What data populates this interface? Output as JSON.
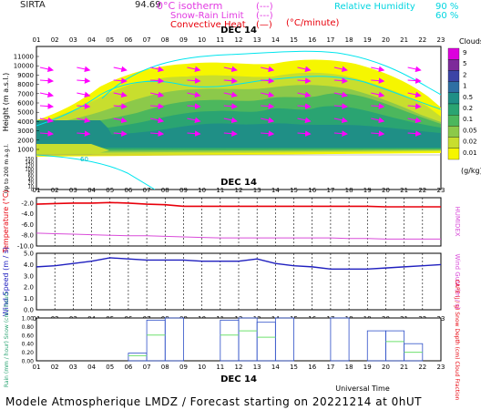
{
  "header": {
    "site": "SIRTA",
    "coord": "94.69",
    "legend_iso": "0°C isotherm",
    "legend_iso_sym": "(---)",
    "legend_snow": "Snow-Rain Limit",
    "legend_snow_sym": "(---)",
    "legend_conv": "Convective Heat.",
    "legend_conv_sym": "(—)",
    "legend_conv_unit": "(°C/minute)",
    "legend_rh": "Relative Humidity",
    "legend_rh_90": "90 %",
    "legend_rh_60": "60 %"
  },
  "hours": [
    "01",
    "02",
    "03",
    "04",
    "05",
    "06",
    "07",
    "08",
    "09",
    "10",
    "11",
    "12",
    "13",
    "14",
    "15",
    "16",
    "17",
    "18",
    "19",
    "20",
    "21",
    "22",
    "23"
  ],
  "date_label": "DEC 14",
  "footer": {
    "title": "Modele Atmospherique LMDZ / Forecast starting on 20221214 at 0hUT",
    "xlabel": "Universal Time"
  },
  "colors": {
    "wind_arrow": "#ff00ff",
    "rh_line": "#00e5ee",
    "temperature": "#e8000b",
    "humidex": "#d94cd9",
    "wind": "#1f1fbf",
    "rain": "#6ee06e",
    "snow_depth": "#2d4fc8"
  },
  "chart_data": [
    {
      "type": "heatmap",
      "name": "clouds",
      "ylabel": "Height (m a.s.l.)",
      "ylabel2": "Up to 200 m a.g.l.",
      "upper_ticks": [
        "11000",
        "10000",
        "9000",
        "8000",
        "7000",
        "6000",
        "5000",
        "4000",
        "3000",
        "2000",
        "1000"
      ],
      "lower_ticks": [
        "150",
        "140",
        "120",
        "100",
        "80",
        "60",
        "40",
        "20",
        "10",
        "0"
      ],
      "colorbar_title": "Clouds",
      "colorbar_ticks": [
        "9",
        "5",
        "2",
        "1",
        "0.5",
        "0.2",
        "0.1",
        "0.05",
        "0.02",
        "0.01"
      ],
      "colorbar_unit": "(g/kg)",
      "colorbar_colors": [
        "#dd00dd",
        "#7d2b9a",
        "#3c44a6",
        "#2e6fa3",
        "#1f8f86",
        "#2aa472",
        "#4cb75d",
        "#8cc94a",
        "#c8de2e",
        "#f6f600"
      ],
      "rh_label": "60"
    },
    {
      "type": "line",
      "name": "temperature",
      "ylabel": "Temperature (°C)",
      "ylabel2": "HUMIDEX",
      "yticks": [
        "-2.0",
        "-4.0",
        "-6.0",
        "-8.0",
        "-10.0"
      ],
      "ylim": [
        -10,
        -1
      ],
      "series": [
        {
          "name": "Temperature",
          "values": [
            -2.2,
            -2.1,
            -2.0,
            -2.0,
            -1.9,
            -2.0,
            -2.2,
            -2.3,
            -2.6,
            -2.6,
            -2.6,
            -2.6,
            -2.6,
            -2.6,
            -2.6,
            -2.6,
            -2.6,
            -2.6,
            -2.6,
            -2.7,
            -2.7,
            -2.7,
            -2.7
          ]
        },
        {
          "name": "HUMIDEX",
          "values": [
            -7.6,
            -7.7,
            -7.8,
            -7.9,
            -8.0,
            -8.1,
            -8.1,
            -8.2,
            -8.3,
            -8.4,
            -8.5,
            -8.5,
            -8.5,
            -8.5,
            -8.5,
            -8.5,
            -8.5,
            -8.6,
            -8.6,
            -8.7,
            -8.7,
            -8.7,
            -8.7
          ]
        }
      ]
    },
    {
      "type": "line",
      "name": "wind",
      "ylabel": "Wind Speed (m / s)",
      "ylabel2": "Wind Gust (m / s)",
      "yticks": [
        "5.0",
        "4.0",
        "3.0",
        "2.0",
        "1.0",
        "0.0"
      ],
      "ylim": [
        0,
        5
      ],
      "series": [
        {
          "name": "Wind Speed",
          "values": [
            3.8,
            3.9,
            4.1,
            4.3,
            4.6,
            4.5,
            4.4,
            4.4,
            4.4,
            4.3,
            4.3,
            4.3,
            4.5,
            4.1,
            3.9,
            3.8,
            3.6,
            3.6,
            3.6,
            3.7,
            3.8,
            3.9,
            4.0
          ]
        }
      ]
    },
    {
      "type": "bar",
      "name": "precipitation",
      "ylabel": "Rain (mm / hour) Snow (cm / hour)",
      "ylabel2": "CAPE (J / g) Snow Depth (cm) Cloud Fraction",
      "yticks": [
        "1.00",
        "0.80",
        "0.60",
        "0.40",
        "0.20",
        "0.00"
      ],
      "ylim": [
        0,
        1
      ],
      "series": [
        {
          "name": "Cloud Fraction",
          "values": [
            0,
            0,
            0,
            0,
            0,
            0,
            0.18,
            0.95,
            1.0,
            0,
            0,
            0.95,
            1.0,
            0.9,
            1.0,
            0,
            0,
            1.0,
            0,
            0.7,
            0.7,
            0.4,
            0
          ]
        },
        {
          "name": "Rain",
          "values": [
            0,
            0,
            0,
            0,
            0,
            0,
            0.12,
            0.6,
            0,
            0,
            0,
            0.6,
            0.7,
            0.55,
            0,
            0,
            0,
            0,
            0,
            0,
            0.45,
            0.2,
            0
          ]
        }
      ]
    }
  ]
}
